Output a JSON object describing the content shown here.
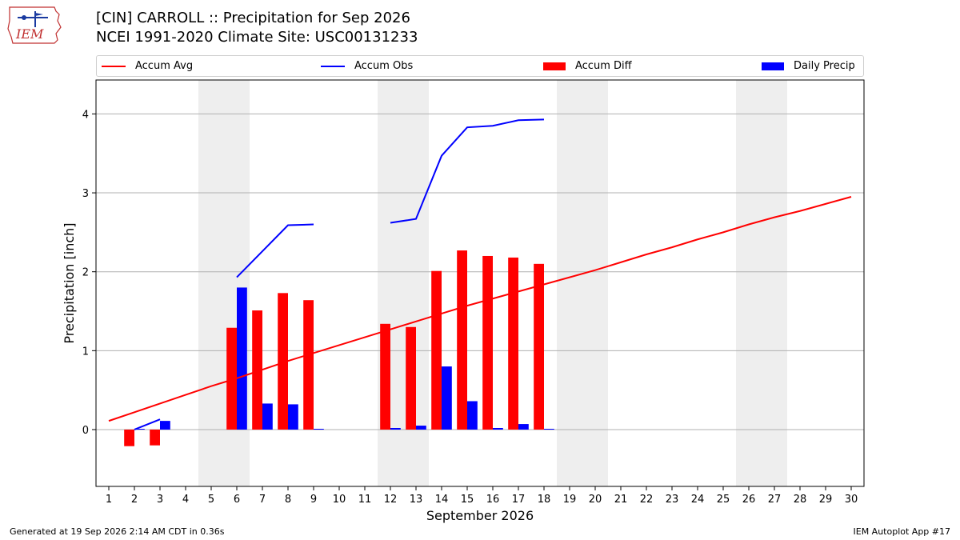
{
  "title_line1": "[CIN] CARROLL :: Precipitation for Sep 2026",
  "title_line2": "NCEI 1991-2020 Climate Site: USC00131233",
  "logo_text": "IEM",
  "footer_left": "Generated at 19 Sep 2026 2:14 AM CDT in 0.36s",
  "footer_right": "IEM Autoplot App #17",
  "colors": {
    "avg": "#ff0000",
    "obs": "#0000ff",
    "diff": "#ff0000",
    "daily": "#0000ff",
    "weekend": "#eeeeee",
    "grid": "#b0b0b0"
  },
  "chart_data": {
    "type": "bar",
    "xlabel": "September 2026",
    "ylabel": "Precipitation [inch]",
    "xlim": [
      0.5,
      30.5
    ],
    "ylim": [
      -0.72,
      4.43
    ],
    "grid": true,
    "legend_position": "top",
    "x_ticks": [
      1,
      2,
      3,
      4,
      5,
      6,
      7,
      8,
      9,
      10,
      11,
      12,
      13,
      14,
      15,
      16,
      17,
      18,
      19,
      20,
      21,
      22,
      23,
      24,
      25,
      26,
      27,
      28,
      29,
      30
    ],
    "y_ticks": [
      0,
      1,
      2,
      3,
      4
    ],
    "shaded_days": [
      [
        5,
        6
      ],
      [
        12,
        13
      ],
      [
        19,
        20
      ],
      [
        26,
        27
      ]
    ],
    "series": [
      {
        "name": "Accum Avg",
        "kind": "line",
        "x": [
          1,
          2,
          3,
          4,
          5,
          6,
          7,
          8,
          9,
          10,
          11,
          12,
          13,
          14,
          15,
          16,
          17,
          18,
          19,
          20,
          21,
          22,
          23,
          24,
          25,
          26,
          27,
          28,
          29,
          30
        ],
        "values": [
          0.11,
          0.22,
          0.33,
          0.44,
          0.55,
          0.65,
          0.76,
          0.87,
          0.97,
          1.07,
          1.17,
          1.27,
          1.37,
          1.47,
          1.57,
          1.66,
          1.75,
          1.84,
          1.93,
          2.02,
          2.12,
          2.22,
          2.31,
          2.41,
          2.5,
          2.6,
          2.69,
          2.77,
          2.86,
          2.95
        ]
      },
      {
        "name": "Accum Obs",
        "kind": "line",
        "x": [
          2,
          3,
          null,
          6,
          7,
          8,
          9,
          null,
          12,
          13,
          14,
          15,
          16,
          17,
          18
        ],
        "values": [
          0.0,
          0.13,
          null,
          1.93,
          2.26,
          2.59,
          2.6,
          null,
          2.62,
          2.67,
          3.47,
          3.83,
          3.85,
          3.92,
          3.93
        ]
      },
      {
        "name": "Accum Diff",
        "kind": "bar",
        "offset": -0.2,
        "x": [
          2,
          3,
          6,
          7,
          8,
          9,
          12,
          13,
          14,
          15,
          16,
          17,
          18
        ],
        "values": [
          -0.21,
          -0.2,
          1.29,
          1.51,
          1.73,
          1.64,
          1.34,
          1.3,
          2.01,
          2.27,
          2.2,
          2.18,
          2.1
        ]
      },
      {
        "name": "Daily Precip",
        "kind": "bar",
        "offset": 0.2,
        "x": [
          2,
          3,
          6,
          7,
          8,
          9,
          12,
          13,
          14,
          15,
          16,
          17,
          18
        ],
        "values": [
          0.01,
          0.11,
          1.8,
          0.33,
          0.32,
          0.01,
          0.02,
          0.05,
          0.8,
          0.36,
          0.02,
          0.07,
          0.01
        ]
      }
    ]
  }
}
